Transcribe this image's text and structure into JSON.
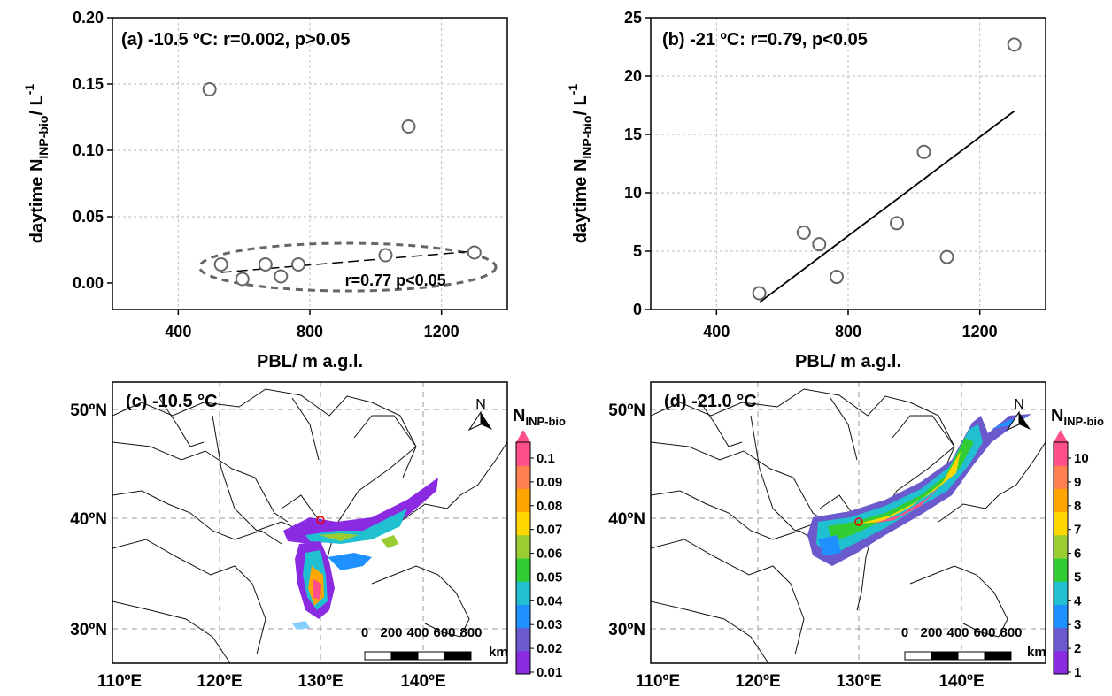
{
  "chart_data": [
    {
      "id": "a",
      "type": "scatter",
      "label": "(a) -10.5 ºC: r=0.002, p>0.05",
      "xlabel": "PBL/ m a.g.l.",
      "ylabel_prefix": "daytime N",
      "ylabel_sub": "INP-bio",
      "ylabel_suffix": "/ L",
      "ylabel_sup": "-1",
      "xlim": [
        200,
        1400
      ],
      "ylim": [
        -0.02,
        0.2
      ],
      "xticks": [
        "400",
        "800",
        "1200"
      ],
      "xtick_values": [
        400,
        800,
        1200
      ],
      "yticks": [
        "0.00",
        "0.05",
        "0.10",
        "0.15",
        "0.20"
      ],
      "ytick_values": [
        0,
        0.05,
        0.1,
        0.15,
        0.2
      ],
      "grid": true,
      "x": [
        495,
        530,
        595,
        665,
        712,
        765,
        1100,
        1030,
        1300
      ],
      "y": [
        0.146,
        0.014,
        0.003,
        0.014,
        0.005,
        0.014,
        0.118,
        0.021,
        0.023
      ],
      "fit": {
        "x": [
          530,
          1300
        ],
        "y": [
          0.008,
          0.024
        ],
        "style": "dashed"
      },
      "ellipse": {
        "cx": 915,
        "cy": 0.012,
        "rx": 450,
        "ry": 0.018
      },
      "annotation": {
        "text": "r=0.77 p<0.05",
        "x": 1060,
        "y": -0.002
      }
    },
    {
      "id": "b",
      "type": "scatter",
      "label": "(b) -21 ºC: r=0.79, p<0.05",
      "xlabel": "PBL/ m a.g.l.",
      "ylabel_prefix": "daytime N",
      "ylabel_sub": "INP-bio",
      "ylabel_suffix": "/ L",
      "ylabel_sup": "-1",
      "xlim": [
        200,
        1400
      ],
      "ylim": [
        0,
        25
      ],
      "xticks": [
        "400",
        "800",
        "1200"
      ],
      "xtick_values": [
        400,
        800,
        1200
      ],
      "yticks": [
        "0",
        "5",
        "10",
        "15",
        "20",
        "25"
      ],
      "ytick_values": [
        0,
        5,
        10,
        15,
        20,
        25
      ],
      "grid": true,
      "x": [
        530,
        665,
        712,
        765,
        948,
        1030,
        1100,
        1305
      ],
      "y": [
        1.4,
        6.6,
        5.6,
        2.8,
        7.4,
        13.5,
        4.5,
        22.7
      ],
      "fit": {
        "x": [
          530,
          1305
        ],
        "y": [
          0.6,
          17.0
        ],
        "style": "solid"
      }
    },
    {
      "id": "c",
      "type": "heatmap",
      "label": "(c) -10.5 °C",
      "colorbar_title_prefix": "N",
      "colorbar_title_sub": "INP-bio",
      "colorbar_ticks": [
        "0.01",
        "0.02",
        "0.03",
        "0.04",
        "0.05",
        "0.06",
        "0.07",
        "0.08",
        "0.09",
        "0.1"
      ],
      "xticks": [
        "110ºE",
        "120ºE",
        "130ºE",
        "140ºE"
      ],
      "yticks": [
        "30ºN",
        "40ºN",
        "50ºN"
      ],
      "north": "N",
      "scalebar_labels": [
        "0",
        "200",
        "400",
        "600",
        "800"
      ],
      "scalebar_unit": "km"
    },
    {
      "id": "d",
      "type": "heatmap",
      "label": "(d) -21.0 °C",
      "colorbar_title_prefix": "N",
      "colorbar_title_sub": "INP-bio",
      "colorbar_ticks": [
        "1",
        "2",
        "3",
        "4",
        "5",
        "6",
        "7",
        "8",
        "9",
        "10"
      ],
      "xticks": [
        "110ºE",
        "120ºE",
        "130ºE",
        "140ºE"
      ],
      "yticks": [
        "30ºN",
        "40ºN",
        "50ºN"
      ],
      "north": "N",
      "scalebar_labels": [
        "0",
        "200",
        "400",
        "600",
        "800"
      ],
      "scalebar_unit": "km"
    }
  ],
  "colors": {
    "point_stroke": "#666666",
    "grid": "#bdbdbd",
    "ramp": [
      "#8a2be2",
      "#6a5acd",
      "#1e90ff",
      "#20c0d0",
      "#32cd32",
      "#9acd32",
      "#ffd700",
      "#ffa500",
      "#ff7f50",
      "#ff4f8b"
    ]
  }
}
